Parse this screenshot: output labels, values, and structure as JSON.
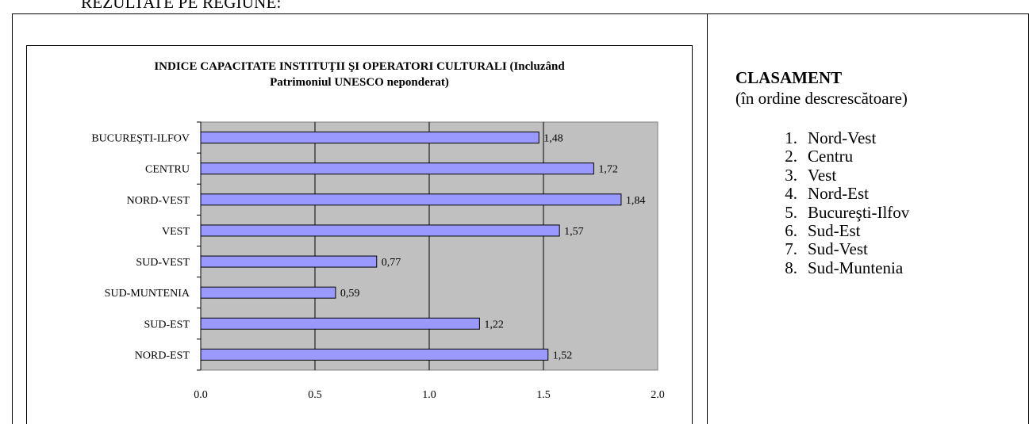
{
  "heading": "REZULTATE PE REGIUNE:",
  "chart_data": {
    "type": "bar",
    "orientation": "horizontal",
    "title_lines": [
      "INDICE CAPACITATE INSTITUŢII ŞI OPERATORI CULTURALI (Incluzând",
      "Patrimoniul UNESCO neponderat)"
    ],
    "categories": [
      "BUCUREŞTI-ILFOV",
      "CENTRU",
      "NORD-VEST",
      "VEST",
      "SUD-VEST",
      "SUD-MUNTENIA",
      "SUD-EST",
      "NORD-EST"
    ],
    "values": [
      1.48,
      1.72,
      1.84,
      1.57,
      0.77,
      0.59,
      1.22,
      1.52
    ],
    "value_labels": [
      "1,48",
      "1,72",
      "1,84",
      "1,57",
      "0,77",
      "0,59",
      "1,22",
      "1,52"
    ],
    "xlim": [
      0,
      2
    ],
    "x_ticks": [
      0,
      0.5,
      1,
      1.5,
      2
    ],
    "x_tick_labels": [
      "0.0",
      "0.5",
      "1.0",
      "1.5",
      "2.0"
    ],
    "grid": "vertical",
    "plot_background": "#c0c0c0",
    "bar_color": "#9999ff"
  },
  "ranking": {
    "title": "CLASAMENT",
    "subtitle": "(în ordine descrescătoare)",
    "items": [
      {
        "num": "1.",
        "name": "Nord-Vest"
      },
      {
        "num": "2.",
        "name": "Centru"
      },
      {
        "num": "3.",
        "name": "Vest"
      },
      {
        "num": "4.",
        "name": "Nord-Est"
      },
      {
        "num": "5.",
        "name": "Bucureşti-Ilfov"
      },
      {
        "num": "6.",
        "name": "Sud-Est"
      },
      {
        "num": "7.",
        "name": "Sud-Vest"
      },
      {
        "num": "8.",
        "name": "Sud-Muntenia"
      }
    ]
  }
}
